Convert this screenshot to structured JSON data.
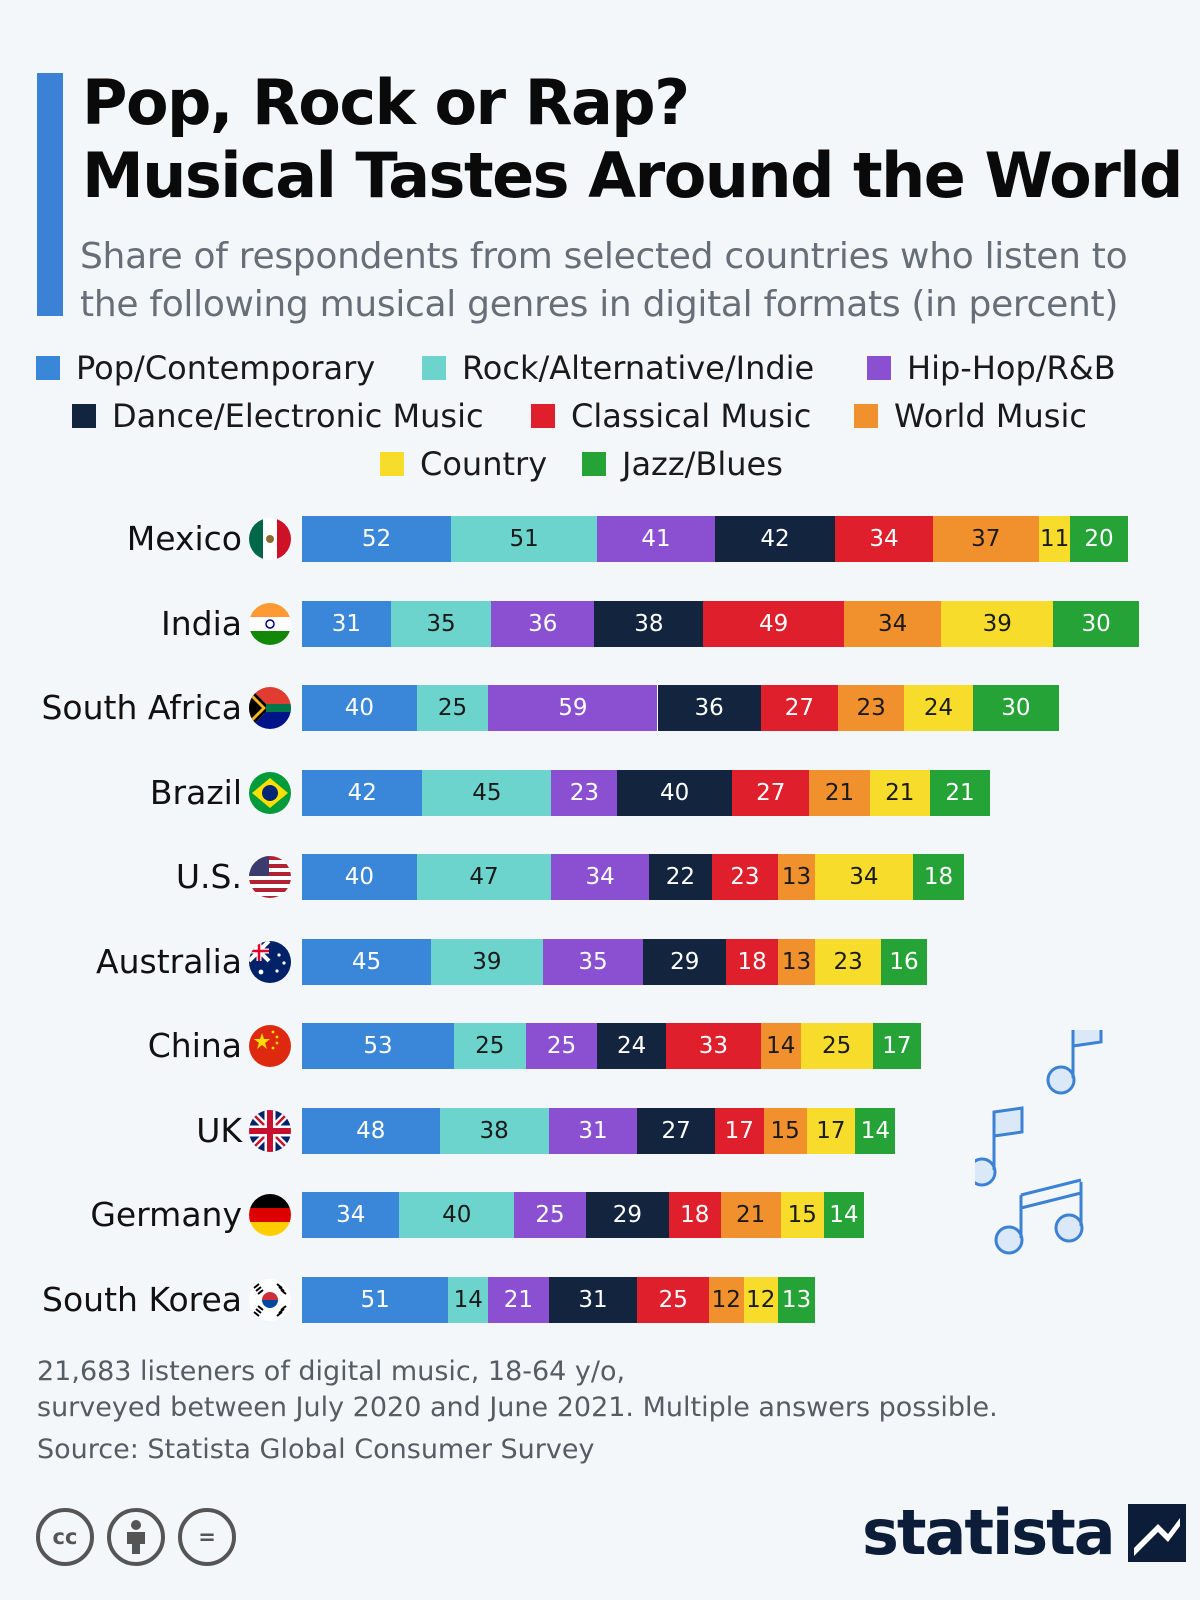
{
  "header": {
    "title_line1": "Pop, Rock or Rap?",
    "title_line2": "Musical Tastes Around the World",
    "subtitle_line1": "Share of respondents from selected countries who listen to",
    "subtitle_line2": "the following musical genres in digital formats (in percent)"
  },
  "chart_data": {
    "type": "bar",
    "orientation": "horizontal",
    "stacked": true,
    "title": "Pop, Rock or Rap? Musical Tastes Around the World",
    "subtitle": "Share of respondents from selected countries who listen to the following musical genres in digital formats (in percent)",
    "categories": [
      "Mexico",
      "India",
      "South Africa",
      "Brazil",
      "U.S.",
      "Australia",
      "China",
      "UK",
      "Germany",
      "South Korea"
    ],
    "series": [
      {
        "name": "Pop/Contemporary",
        "color": "#3a87d9",
        "text_color": "#ffffff",
        "values": [
          52,
          31,
          40,
          42,
          40,
          45,
          53,
          48,
          34,
          51
        ]
      },
      {
        "name": "Rock/Alternative/Indie",
        "color": "#6dd3cd",
        "text_color": "#1a1a1a",
        "values": [
          51,
          35,
          25,
          45,
          47,
          39,
          25,
          38,
          40,
          14
        ]
      },
      {
        "name": "Hip-Hop/R&B",
        "color": "#8b4fd2",
        "text_color": "#ffffff",
        "values": [
          41,
          36,
          59,
          23,
          34,
          35,
          25,
          31,
          25,
          21
        ]
      },
      {
        "name": "Dance/Electronic Music",
        "color": "#13243f",
        "text_color": "#ffffff",
        "values": [
          42,
          38,
          36,
          40,
          22,
          29,
          24,
          27,
          29,
          31
        ]
      },
      {
        "name": "Classical Music",
        "color": "#df1f2b",
        "text_color": "#ffffff",
        "values": [
          34,
          49,
          27,
          27,
          23,
          18,
          33,
          17,
          18,
          25
        ]
      },
      {
        "name": "World Music",
        "color": "#f0912e",
        "text_color": "#1a1a1a",
        "values": [
          37,
          34,
          23,
          21,
          13,
          13,
          14,
          15,
          21,
          12
        ]
      },
      {
        "name": "Country",
        "color": "#f7dc2c",
        "text_color": "#1a1a1a",
        "values": [
          11,
          39,
          24,
          21,
          34,
          23,
          25,
          17,
          15,
          12
        ]
      },
      {
        "name": "Jazz/Blues",
        "color": "#25a336",
        "text_color": "#ffffff",
        "values": [
          20,
          30,
          30,
          21,
          18,
          16,
          17,
          14,
          14,
          13
        ]
      }
    ],
    "flags": [
      "mexico-flag-icon",
      "india-flag-icon",
      "south-africa-flag-icon",
      "brazil-flag-icon",
      "us-flag-icon",
      "australia-flag-icon",
      "china-flag-icon",
      "uk-flag-icon",
      "germany-flag-icon",
      "south-korea-flag-icon"
    ],
    "legend_placement": "top",
    "grid": false
  },
  "footer": {
    "note_line1": "21,683 listeners of digital music, 18-64 y/o,",
    "note_line2": "surveyed between July 2020 and June 2021. Multiple answers possible.",
    "source": "Source: Statista Global Consumer Survey",
    "license_icons": [
      "cc-icon",
      "by-icon",
      "nd-icon"
    ],
    "cc_text": "cc",
    "nd_text": "=",
    "brand": "statista"
  },
  "decoration": {
    "icon": "music-notes-icon"
  }
}
